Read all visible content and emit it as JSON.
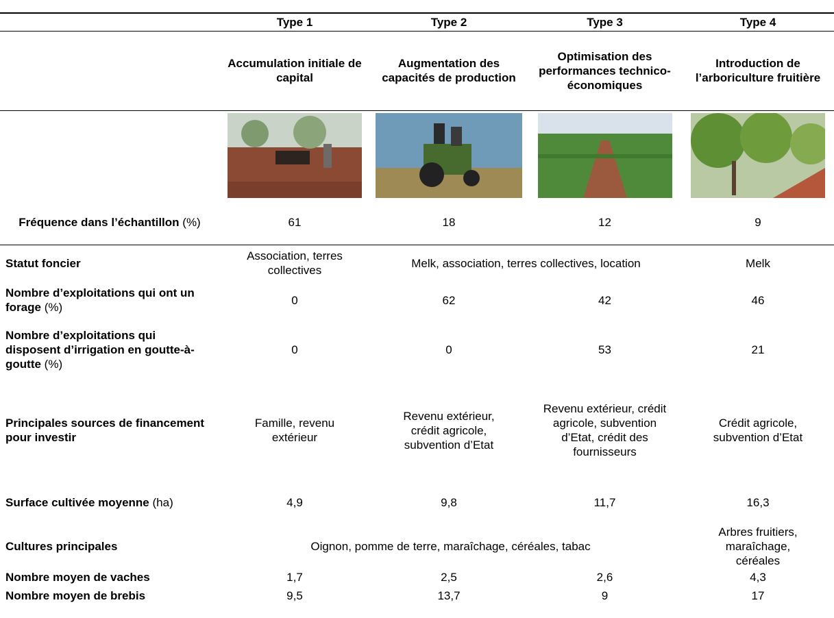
{
  "header": {
    "types": [
      "Type 1",
      "Type 2",
      "Type 3",
      "Type 4"
    ],
    "names": [
      "Accumulation initiale de capital",
      "Augmentation des capacités de production",
      "Optimisation des performances technico-économiques",
      "Introduction de l’arboriculture fruitière"
    ]
  },
  "rows": [
    {
      "label": "Fréquence dans l’échantillon",
      "unit": "(%)",
      "cells": [
        "61",
        "18",
        "12",
        "9"
      ]
    },
    {
      "label": "Statut foncier",
      "cells": [
        "Association, terres collectives",
        "Melk, association, terres collectives, location",
        "Melk"
      ]
    },
    {
      "label": "Nombre d’exploitations qui ont un forage",
      "unit": "(%)",
      "cells": [
        "0",
        "62",
        "42",
        "46"
      ]
    },
    {
      "label": "Nombre d’exploitations qui disposent d’irrigation en goutte-à-goutte",
      "unit": "(%)",
      "cells": [
        "0",
        "0",
        "53",
        "21"
      ]
    },
    {
      "label": "Principales sources de financement pour investir",
      "cells": [
        "Famille, revenu extérieur",
        "Revenu extérieur, crédit agricole, subvention d’Etat",
        "Revenu extérieur, crédit agricole, subvention d’Etat, crédit des fournisseurs",
        "Crédit agricole, subvention d’Etat"
      ]
    },
    {
      "label": "Surface cultivée moyenne",
      "unit": "(ha)",
      "cells": [
        "4,9",
        "9,8",
        "11,7",
        "16,3"
      ]
    },
    {
      "label": "Cultures principales",
      "cells": [
        "Oignon, pomme de terre, maraîchage, céréales, tabac",
        "Arbres fruitiers, maraîchage, céréales"
      ]
    },
    {
      "label": "Nombre moyen de vaches",
      "cells": [
        "1,7",
        "2,5",
        "2,6",
        "4,3"
      ]
    },
    {
      "label": "Nombre moyen de brebis",
      "cells": [
        "9,5",
        "13,7",
        "9",
        "17"
      ]
    }
  ]
}
